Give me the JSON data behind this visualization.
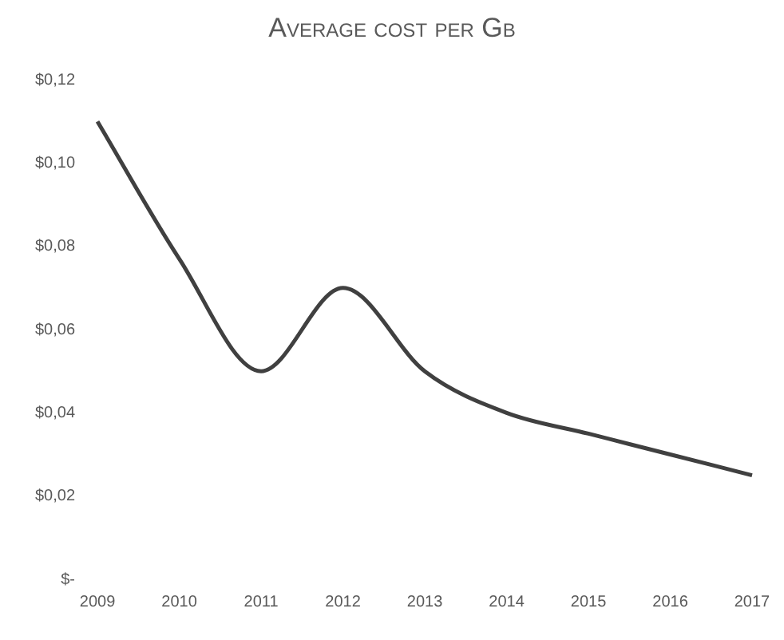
{
  "chart_data": {
    "type": "line",
    "title": "Average cost per Gb",
    "categories": [
      "2009",
      "2010",
      "2011",
      "2012",
      "2013",
      "2014",
      "2015",
      "2016",
      "2017"
    ],
    "series": [
      {
        "color": "#404040",
        "values": [
          0.11,
          0.077,
          0.05,
          0.07,
          0.05,
          0.04,
          0.035,
          0.03,
          0.025
        ]
      }
    ],
    "ylim": [
      0,
      0.12
    ],
    "yticks": [
      {
        "value": 0,
        "label": "$-"
      },
      {
        "value": 0.02,
        "label": "$0,02"
      },
      {
        "value": 0.04,
        "label": "$0,04"
      },
      {
        "value": 0.06,
        "label": "$0,06"
      },
      {
        "value": 0.08,
        "label": "$0,08"
      },
      {
        "value": 0.1,
        "label": "$0,10"
      },
      {
        "value": 0.12,
        "label": "$0,12"
      }
    ],
    "grid": false,
    "legend": false,
    "marker": "none",
    "line_style": "solid"
  }
}
